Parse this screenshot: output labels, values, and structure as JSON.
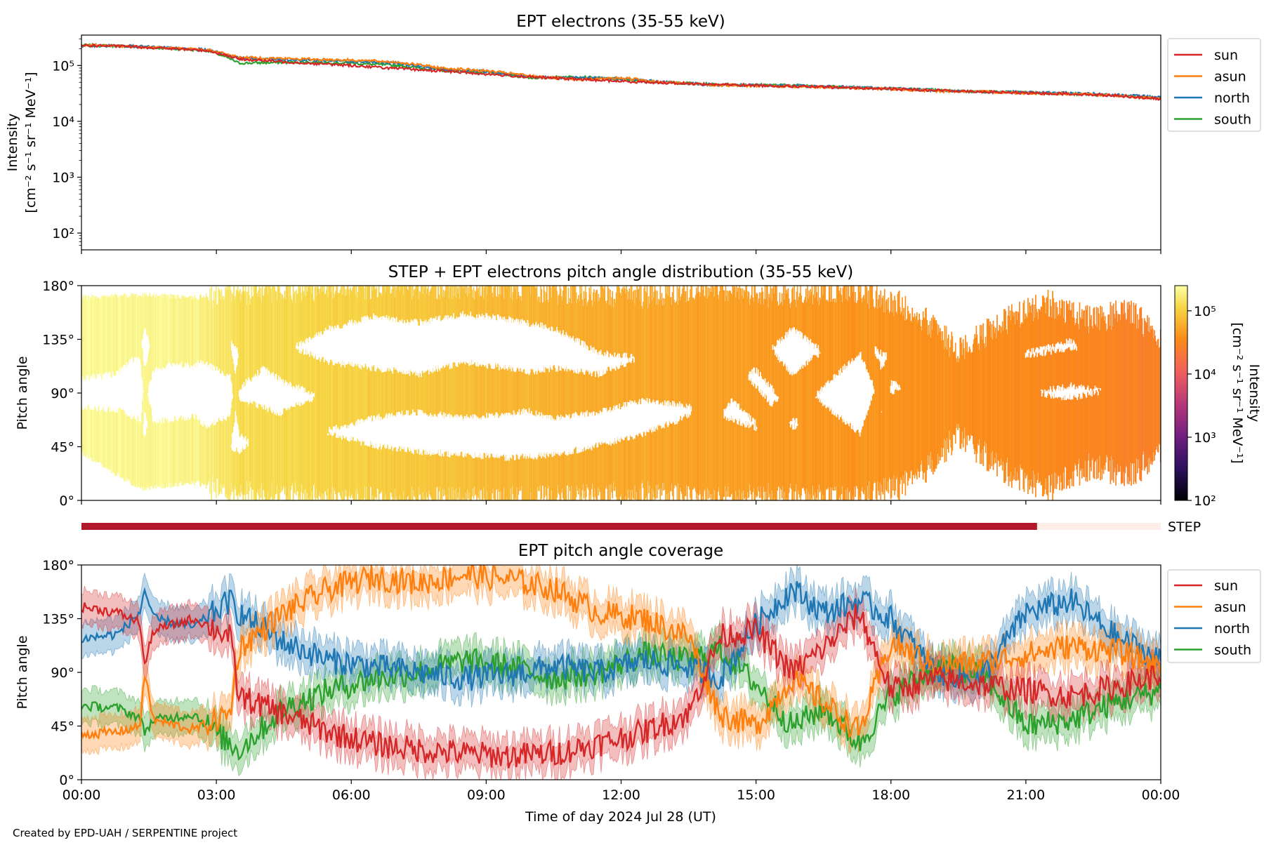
{
  "footer": "Created by EPD-UAH / SERPENTINE project",
  "colors": {
    "sun": "#d62728",
    "asun": "#ff7f0e",
    "north": "#1f77b4",
    "south": "#2ca02c",
    "step_bar": "#b2182b",
    "step_bar_light": "#fdeee8"
  },
  "chart_data": [
    {
      "type": "line",
      "title": "EPT electrons (35-55 keV)",
      "ylabel_line1": "Intensity",
      "ylabel_line2": "[cm⁻² s⁻¹ sr⁻¹ MeV⁻¹]",
      "yscale": "log",
      "ylim": [
        50,
        350000
      ],
      "yticks": [
        {
          "value": 100,
          "label": "10²"
        },
        {
          "value": 1000,
          "label": "10³"
        },
        {
          "value": 10000,
          "label": "10⁴"
        },
        {
          "value": 100000,
          "label": "10⁵"
        }
      ],
      "x_unit": "hours of day 2024 Jul 28",
      "xlim": [
        0,
        24
      ],
      "legend_position": "right, outside top",
      "series": [
        {
          "name": "sun",
          "x": [
            0,
            1,
            2,
            2.8,
            3.5,
            5,
            6,
            7,
            8,
            9,
            10,
            11,
            12,
            13,
            14,
            15,
            16,
            17,
            18,
            19,
            20,
            21,
            22,
            23,
            24
          ],
          "y": [
            230000,
            220000,
            200000,
            185000,
            130000,
            110000,
            100000,
            88000,
            80000,
            70000,
            62000,
            57000,
            52000,
            49000,
            46000,
            44000,
            42000,
            40000,
            38000,
            36000,
            34000,
            32000,
            31000,
            29000,
            25000
          ]
        },
        {
          "name": "asun",
          "x": [
            0,
            1,
            2,
            2.8,
            3.5,
            5,
            6,
            7,
            8,
            9,
            10,
            11,
            12,
            13,
            14,
            15,
            16,
            17,
            18,
            19,
            20,
            21,
            22,
            23,
            24
          ],
          "y": [
            230000,
            220000,
            205000,
            190000,
            140000,
            130000,
            125000,
            115000,
            90000,
            80000,
            65000,
            55000,
            60000,
            50000,
            45000,
            43000,
            42000,
            40000,
            38000,
            35000,
            34000,
            32000,
            31000,
            29000,
            25000
          ]
        },
        {
          "name": "north",
          "x": [
            0,
            1,
            2,
            2.8,
            3.5,
            5,
            6,
            7,
            8,
            9,
            10,
            11,
            12,
            13,
            14,
            15,
            16,
            17,
            18,
            19,
            20,
            21,
            22,
            23,
            24
          ],
          "y": [
            225000,
            225000,
            205000,
            190000,
            135000,
            125000,
            120000,
            110000,
            85000,
            78000,
            62000,
            60000,
            58000,
            50000,
            45000,
            44000,
            43000,
            41000,
            39000,
            36000,
            34000,
            33000,
            32000,
            30000,
            27000
          ]
        },
        {
          "name": "south",
          "x": [
            0,
            1,
            2,
            2.8,
            3.5,
            5,
            6,
            7,
            8,
            9,
            10,
            11,
            12,
            13,
            14,
            15,
            16,
            17,
            18,
            19,
            20,
            21,
            22,
            23,
            24
          ],
          "y": [
            230000,
            222000,
            200000,
            185000,
            110000,
            115000,
            110000,
            100000,
            82000,
            75000,
            60000,
            63000,
            56000,
            50000,
            46000,
            45000,
            44000,
            41000,
            39000,
            36000,
            34000,
            33000,
            31000,
            29000,
            26000
          ]
        }
      ]
    },
    {
      "type": "heatmap",
      "title": "STEP + EPT electrons pitch angle distribution (35-55 keV)",
      "ylabel": "Pitch angle",
      "ylim": [
        0,
        180
      ],
      "yticks": [
        "0°",
        "45°",
        "90°",
        "135°",
        "180°"
      ],
      "xlim": [
        0,
        24
      ],
      "colorbar": {
        "label_line1": "Intensity",
        "label_line2": "[cm⁻² s⁻¹ sr⁻¹ MeV⁻¹]",
        "scale": "log",
        "range": [
          100,
          250000
        ],
        "ticks": [
          "10²",
          "10³",
          "10⁴",
          "10⁵"
        ]
      },
      "columns": [
        {
          "x": 0,
          "lo": 40,
          "hi": 170,
          "i": 220000
        },
        {
          "x": 1.3,
          "lo": 10,
          "hi": 172,
          "i": 215000
        },
        {
          "x": 2.5,
          "lo": 15,
          "hi": 170,
          "i": 200000
        },
        {
          "x": 3.5,
          "lo": 5,
          "hi": 175,
          "i": 130000
        },
        {
          "x": 5,
          "lo": 3,
          "hi": 178,
          "i": 115000
        },
        {
          "x": 6.5,
          "lo": 0,
          "hi": 180,
          "i": 100000
        },
        {
          "x": 8,
          "lo": 0,
          "hi": 180,
          "i": 85000
        },
        {
          "x": 9.5,
          "lo": 0,
          "hi": 180,
          "i": 70000
        },
        {
          "x": 11,
          "lo": 2,
          "hi": 175,
          "i": 60000
        },
        {
          "x": 12.5,
          "lo": 5,
          "hi": 172,
          "i": 55000
        },
        {
          "x": 14,
          "lo": 0,
          "hi": 180,
          "i": 50000
        },
        {
          "x": 15.5,
          "lo": 3,
          "hi": 172,
          "i": 45000
        },
        {
          "x": 17,
          "lo": 0,
          "hi": 178,
          "i": 42000
        },
        {
          "x": 18.5,
          "lo": 15,
          "hi": 160,
          "i": 40000
        },
        {
          "x": 19.5,
          "lo": 55,
          "hi": 125,
          "i": 37000
        },
        {
          "x": 20.5,
          "lo": 25,
          "hi": 150,
          "i": 35000
        },
        {
          "x": 21.5,
          "lo": 10,
          "hi": 165,
          "i": 33000
        },
        {
          "x": 22.5,
          "lo": 30,
          "hi": 150,
          "i": 31000
        },
        {
          "x": 23.3,
          "lo": 20,
          "hi": 160,
          "i": 29000
        },
        {
          "x": 24,
          "lo": 40,
          "hi": 135,
          "i": 27000
        }
      ]
    },
    {
      "type": "bar",
      "label": "STEP",
      "note": "STEP data availability",
      "segments": [
        {
          "from": 0,
          "to": 21.25,
          "state": "available"
        },
        {
          "from": 21.25,
          "to": 24,
          "state": "unavailable"
        }
      ]
    },
    {
      "type": "line",
      "title": "EPT pitch angle coverage",
      "ylabel": "Pitch angle",
      "xlabel": "Time of day 2024 Jul 28 (UT)",
      "ylim": [
        0,
        180
      ],
      "yticks": [
        "0°",
        "45°",
        "90°",
        "135°",
        "180°"
      ],
      "xlim": [
        0,
        24
      ],
      "xticks": [
        "00:00",
        "03:00",
        "06:00",
        "09:00",
        "12:00",
        "15:00",
        "18:00",
        "21:00",
        "00:00"
      ],
      "legend_position": "right, outside top",
      "band_halfwidth_deg": 14,
      "series": [
        {
          "name": "sun",
          "x": [
            0,
            0.8,
            1.3,
            1.4,
            1.6,
            2.5,
            3.3,
            3.5,
            4.5,
            5.5,
            6.5,
            7.5,
            8.5,
            9.5,
            10.5,
            11.5,
            12.5,
            13.5,
            14.2,
            15,
            15.8,
            16.5,
            17.3,
            18,
            19,
            20,
            21,
            22,
            23,
            24
          ],
          "y": [
            145,
            140,
            132,
            95,
            125,
            135,
            120,
            70,
            55,
            40,
            30,
            25,
            22,
            20,
            22,
            30,
            40,
            55,
            120,
            125,
            90,
            110,
            140,
            75,
            85,
            80,
            75,
            70,
            78,
            88
          ]
        },
        {
          "name": "asun",
          "x": [
            0,
            0.8,
            1.3,
            1.4,
            1.6,
            2.5,
            3.3,
            3.5,
            4.5,
            5.5,
            6.5,
            7.5,
            8.5,
            9.5,
            10.5,
            11.5,
            12.5,
            13.5,
            14.2,
            15,
            15.8,
            16.5,
            17.3,
            18,
            19,
            20,
            21,
            22,
            23,
            24
          ],
          "y": [
            38,
            40,
            45,
            90,
            50,
            42,
            55,
            110,
            140,
            160,
            170,
            165,
            172,
            168,
            160,
            140,
            135,
            120,
            55,
            45,
            85,
            65,
            40,
            115,
            95,
            98,
            105,
            112,
            108,
            95
          ]
        },
        {
          "name": "north",
          "x": [
            0,
            0.8,
            1.3,
            1.4,
            1.6,
            2.5,
            3.3,
            3.5,
            4.5,
            5.5,
            6.5,
            7.5,
            8.5,
            9.5,
            10.5,
            11.5,
            12.5,
            13.5,
            14.2,
            15,
            15.8,
            16.5,
            17.3,
            18,
            19,
            20,
            21,
            22,
            23,
            24
          ],
          "y": [
            118,
            122,
            140,
            160,
            135,
            128,
            150,
            140,
            115,
            100,
            95,
            90,
            85,
            88,
            95,
            90,
            100,
            95,
            85,
            130,
            160,
            140,
            150,
            135,
            90,
            85,
            140,
            150,
            120,
            100
          ]
        },
        {
          "name": "south",
          "x": [
            0,
            0.8,
            1.3,
            1.4,
            1.6,
            2.5,
            3.3,
            3.5,
            4.5,
            5.5,
            6.5,
            7.5,
            8.5,
            9.5,
            10.5,
            11.5,
            12.5,
            13.5,
            14.2,
            15,
            15.8,
            16.5,
            17.3,
            18,
            19,
            20,
            21,
            22,
            23,
            24
          ],
          "y": [
            62,
            60,
            52,
            40,
            50,
            55,
            30,
            25,
            60,
            75,
            85,
            90,
            100,
            95,
            85,
            90,
            105,
            100,
            110,
            80,
            45,
            60,
            30,
            70,
            95,
            90,
            45,
            50,
            65,
            75
          ]
        }
      ]
    }
  ]
}
